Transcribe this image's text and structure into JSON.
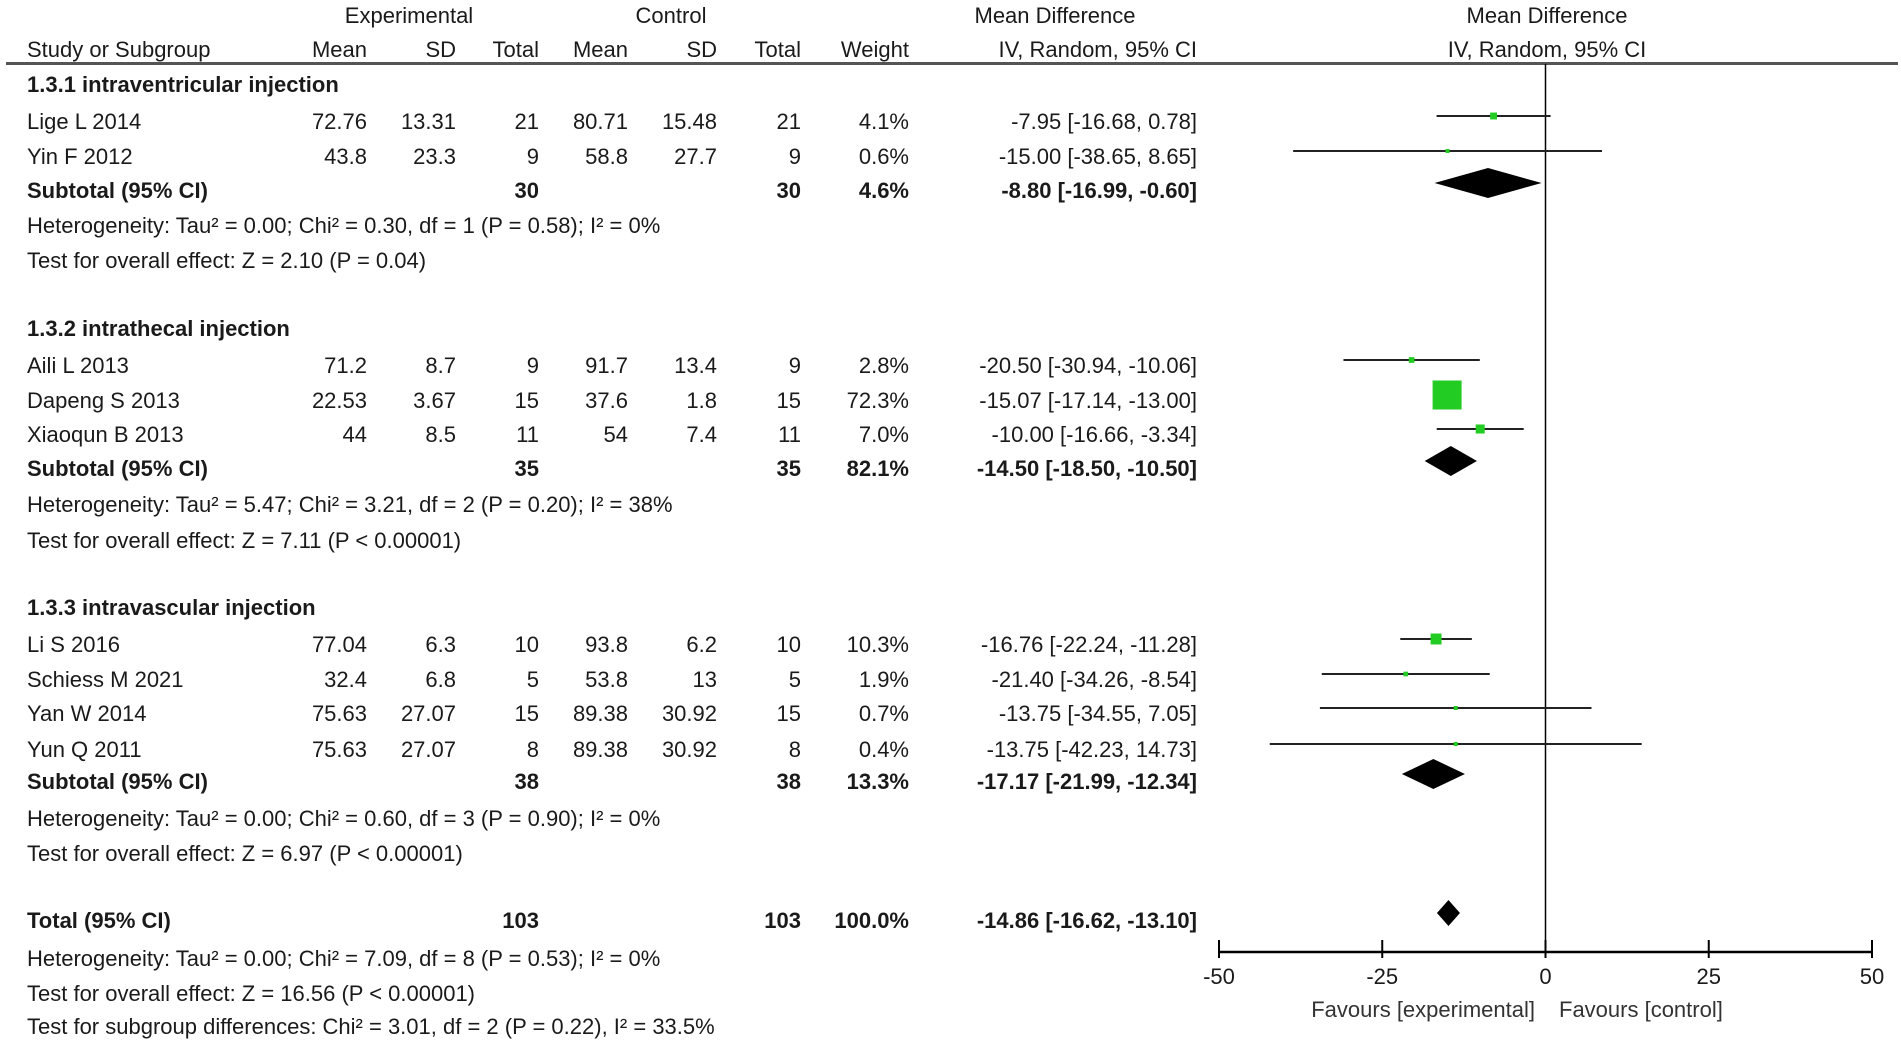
{
  "header": {
    "experimental": "Experimental",
    "control": "Control",
    "md_title": "Mean Difference",
    "plot_title": "Mean Difference",
    "columns": [
      "Study or Subgroup",
      "Mean",
      "SD",
      "Total",
      "Mean",
      "SD",
      "Total",
      "Weight",
      "IV, Random, 95% CI"
    ],
    "plot_subtitle": "IV, Random, 95% CI"
  },
  "rows": [
    {
      "type": "group",
      "label": "1.3.1 intraventricular injection"
    },
    {
      "type": "study",
      "cells": [
        "Lige L 2014",
        "72.76",
        "13.31",
        "21",
        "80.71",
        "15.48",
        "21",
        "4.1%",
        "-7.95 [-16.68, 0.78]"
      ]
    },
    {
      "type": "study",
      "cells": [
        "Yin F 2012",
        "43.8",
        "23.3",
        "9",
        "58.8",
        "27.7",
        "9",
        "0.6%",
        "-15.00 [-38.65, 8.65]"
      ]
    },
    {
      "type": "subtotal",
      "cells": [
        "Subtotal (95% CI)",
        "",
        "",
        "30",
        "",
        "",
        "30",
        "4.6%",
        "-8.80 [-16.99, -0.60]"
      ]
    },
    {
      "type": "note",
      "label": "Heterogeneity: Tau² = 0.00; Chi² = 0.30, df = 1 (P = 0.58); I² = 0%"
    },
    {
      "type": "note",
      "label": "Test for overall effect: Z = 2.10 (P = 0.04)"
    },
    {
      "type": "group",
      "label": "1.3.2 intrathecal injection"
    },
    {
      "type": "study",
      "cells": [
        "Aili L 2013",
        "71.2",
        "8.7",
        "9",
        "91.7",
        "13.4",
        "9",
        "2.8%",
        "-20.50 [-30.94, -10.06]"
      ]
    },
    {
      "type": "study",
      "cells": [
        "Dapeng S 2013",
        "22.53",
        "3.67",
        "15",
        "37.6",
        "1.8",
        "15",
        "72.3%",
        "-15.07 [-17.14, -13.00]"
      ]
    },
    {
      "type": "study",
      "cells": [
        "Xiaoqun B 2013",
        "44",
        "8.5",
        "11",
        "54",
        "7.4",
        "11",
        "7.0%",
        "-10.00 [-16.66, -3.34]"
      ]
    },
    {
      "type": "subtotal",
      "cells": [
        "Subtotal (95% CI)",
        "",
        "",
        "35",
        "",
        "",
        "35",
        "82.1%",
        "-14.50 [-18.50, -10.50]"
      ]
    },
    {
      "type": "note",
      "label": "Heterogeneity: Tau² = 5.47; Chi² = 3.21, df = 2 (P = 0.20); I² = 38%"
    },
    {
      "type": "note",
      "label": "Test for overall effect: Z = 7.11 (P < 0.00001)"
    },
    {
      "type": "group",
      "label": "1.3.3 intravascular injection"
    },
    {
      "type": "study",
      "cells": [
        "Li S 2016",
        "77.04",
        "6.3",
        "10",
        "93.8",
        "6.2",
        "10",
        "10.3%",
        "-16.76 [-22.24, -11.28]"
      ]
    },
    {
      "type": "study",
      "cells": [
        "Schiess M 2021",
        "32.4",
        "6.8",
        "5",
        "53.8",
        "13",
        "5",
        "1.9%",
        "-21.40 [-34.26, -8.54]"
      ]
    },
    {
      "type": "study",
      "cells": [
        "Yan W  2014",
        "75.63",
        "27.07",
        "15",
        "89.38",
        "30.92",
        "15",
        "0.7%",
        "-13.75 [-34.55, 7.05]"
      ]
    },
    {
      "type": "study",
      "cells": [
        "Yun Q 2011",
        "75.63",
        "27.07",
        "8",
        "89.38",
        "30.92",
        "8",
        "0.4%",
        "-13.75 [-42.23, 14.73]"
      ]
    },
    {
      "type": "subtotal",
      "cells": [
        "Subtotal (95% CI)",
        "",
        "",
        "38",
        "",
        "",
        "38",
        "13.3%",
        "-17.17 [-21.99, -12.34]"
      ]
    },
    {
      "type": "note",
      "label": "Heterogeneity: Tau² = 0.00; Chi² = 0.60, df = 3 (P = 0.90); I² = 0%"
    },
    {
      "type": "note",
      "label": "Test for overall effect: Z = 6.97 (P < 0.00001)"
    },
    {
      "type": "subtotal",
      "cells": [
        "Total (95% CI)",
        "",
        "",
        "103",
        "",
        "",
        "103",
        "100.0%",
        "-14.86 [-16.62, -13.10]"
      ]
    },
    {
      "type": "note",
      "label": "Heterogeneity: Tau² = 0.00; Chi² = 7.09, df = 8 (P = 0.53); I² = 0%"
    },
    {
      "type": "note",
      "label": "Test for overall effect: Z = 16.56 (P < 0.00001)"
    },
    {
      "type": "note",
      "label": "Test for subgroup differences: Chi² = 3.01, df = 2 (P = 0.22), I² = 33.5%"
    }
  ],
  "chart_data": {
    "type": "forest",
    "xlim": [
      -50,
      50
    ],
    "ticks": [
      "-50",
      "-25",
      "0",
      "25",
      "50"
    ],
    "tick_values": [
      -50,
      -25,
      0,
      25,
      50
    ],
    "left_label": "Favours [experimental]",
    "right_label": "Favours [control]",
    "colors": {
      "study": "#22cc22",
      "diamond": "#000000",
      "line": "#000000"
    },
    "points": [
      {
        "row": 1,
        "kind": "study",
        "md": -7.95,
        "lo": -16.68,
        "hi": 0.78,
        "weight": 4.1
      },
      {
        "row": 2,
        "kind": "study",
        "md": -15.0,
        "lo": -38.65,
        "hi": 8.65,
        "weight": 0.6
      },
      {
        "row": 3,
        "kind": "diamond",
        "md": -8.8,
        "lo": -16.99,
        "hi": -0.6
      },
      {
        "row": 7,
        "kind": "study",
        "md": -20.5,
        "lo": -30.94,
        "hi": -10.06,
        "weight": 2.8
      },
      {
        "row": 8,
        "kind": "study",
        "md": -15.07,
        "lo": -17.14,
        "hi": -13.0,
        "weight": 72.3
      },
      {
        "row": 9,
        "kind": "study",
        "md": -10.0,
        "lo": -16.66,
        "hi": -3.34,
        "weight": 7.0
      },
      {
        "row": 10,
        "kind": "diamond",
        "md": -14.5,
        "lo": -18.5,
        "hi": -10.5
      },
      {
        "row": 14,
        "kind": "study",
        "md": -16.76,
        "lo": -22.24,
        "hi": -11.28,
        "weight": 10.3
      },
      {
        "row": 15,
        "kind": "study",
        "md": -21.4,
        "lo": -34.26,
        "hi": -8.54,
        "weight": 1.9
      },
      {
        "row": 16,
        "kind": "study",
        "md": -13.75,
        "lo": -34.55,
        "hi": 7.05,
        "weight": 0.7
      },
      {
        "row": 17,
        "kind": "study",
        "md": -13.75,
        "lo": -42.23,
        "hi": 14.73,
        "weight": 0.4
      },
      {
        "row": 18,
        "kind": "diamond",
        "md": -17.17,
        "lo": -21.99,
        "hi": -12.34
      },
      {
        "row": 21,
        "kind": "diamond",
        "md": -14.86,
        "lo": -16.62,
        "hi": -13.1
      }
    ]
  }
}
